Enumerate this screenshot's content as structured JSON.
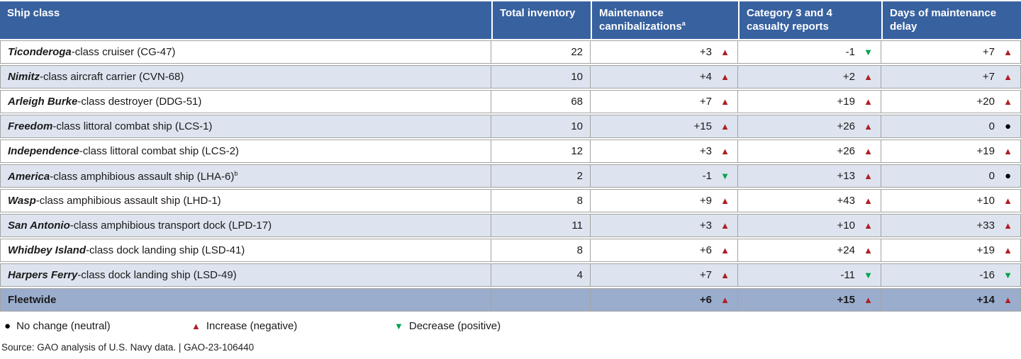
{
  "table": {
    "columns": [
      {
        "label": "Ship class",
        "sup": ""
      },
      {
        "label": "Total inventory",
        "sup": ""
      },
      {
        "label": "Maintenance cannibalizations",
        "sup": "a"
      },
      {
        "label": "Category 3 and 4 casualty reports",
        "sup": ""
      },
      {
        "label": "Days of maintenance delay",
        "sup": ""
      }
    ],
    "rows": [
      {
        "class_name": "Ticonderoga",
        "rest": "-class cruiser (CG-47)",
        "sup": "",
        "inventory": "22",
        "cannibalizations": {
          "value": "+3",
          "dir": "up"
        },
        "casualty_reports": {
          "value": "-1",
          "dir": "down"
        },
        "maintenance_delay": {
          "value": "+7",
          "dir": "up"
        }
      },
      {
        "class_name": "Nimitz",
        "rest": "-class aircraft carrier (CVN-68)",
        "sup": "",
        "inventory": "10",
        "cannibalizations": {
          "value": "+4",
          "dir": "up"
        },
        "casualty_reports": {
          "value": "+2",
          "dir": "up"
        },
        "maintenance_delay": {
          "value": "+7",
          "dir": "up"
        }
      },
      {
        "class_name": "Arleigh Burke",
        "rest": "-class destroyer (DDG-51)",
        "sup": "",
        "inventory": "68",
        "cannibalizations": {
          "value": "+7",
          "dir": "up"
        },
        "casualty_reports": {
          "value": "+19",
          "dir": "up"
        },
        "maintenance_delay": {
          "value": "+20",
          "dir": "up"
        }
      },
      {
        "class_name": "Freedom",
        "rest": "-class littoral combat ship (LCS-1)",
        "sup": "",
        "inventory": "10",
        "cannibalizations": {
          "value": "+15",
          "dir": "up"
        },
        "casualty_reports": {
          "value": "+26",
          "dir": "up"
        },
        "maintenance_delay": {
          "value": "0",
          "dir": "neutral"
        }
      },
      {
        "class_name": "Independence",
        "rest": "-class littoral combat ship (LCS-2)",
        "sup": "",
        "inventory": "12",
        "cannibalizations": {
          "value": "+3",
          "dir": "up"
        },
        "casualty_reports": {
          "value": "+26",
          "dir": "up"
        },
        "maintenance_delay": {
          "value": "+19",
          "dir": "up"
        }
      },
      {
        "class_name": "America",
        "rest": "-class amphibious assault ship (LHA-6)",
        "sup": "b",
        "inventory": "2",
        "cannibalizations": {
          "value": "-1",
          "dir": "down"
        },
        "casualty_reports": {
          "value": "+13",
          "dir": "up"
        },
        "maintenance_delay": {
          "value": "0",
          "dir": "neutral"
        }
      },
      {
        "class_name": "Wasp",
        "rest": "-class amphibious assault ship (LHD-1)",
        "sup": "",
        "inventory": "8",
        "cannibalizations": {
          "value": "+9",
          "dir": "up"
        },
        "casualty_reports": {
          "value": "+43",
          "dir": "up"
        },
        "maintenance_delay": {
          "value": "+10",
          "dir": "up"
        }
      },
      {
        "class_name": "San Antonio",
        "rest": "-class amphibious transport dock (LPD-17)",
        "sup": "",
        "inventory": "11",
        "cannibalizations": {
          "value": "+3",
          "dir": "up"
        },
        "casualty_reports": {
          "value": "+10",
          "dir": "up"
        },
        "maintenance_delay": {
          "value": "+33",
          "dir": "up"
        }
      },
      {
        "class_name": "Whidbey Island",
        "rest": "-class dock landing ship (LSD-41)",
        "sup": "",
        "inventory": "8",
        "cannibalizations": {
          "value": "+6",
          "dir": "up"
        },
        "casualty_reports": {
          "value": "+24",
          "dir": "up"
        },
        "maintenance_delay": {
          "value": "+19",
          "dir": "up"
        }
      },
      {
        "class_name": "Harpers Ferry",
        "rest": "-class dock landing ship (LSD-49)",
        "sup": "",
        "inventory": "4",
        "cannibalizations": {
          "value": "+7",
          "dir": "up"
        },
        "casualty_reports": {
          "value": "-11",
          "dir": "down"
        },
        "maintenance_delay": {
          "value": "-16",
          "dir": "down"
        }
      }
    ],
    "footer_row": {
      "label": "Fleetwide",
      "inventory": "",
      "cannibalizations": {
        "value": "+6",
        "dir": "up"
      },
      "casualty_reports": {
        "value": "+15",
        "dir": "up"
      },
      "maintenance_delay": {
        "value": "+14",
        "dir": "up"
      }
    }
  },
  "symbols": {
    "up": "▲",
    "down": "▼",
    "neutral": "●"
  },
  "legend": {
    "items": [
      {
        "icon": "neutral-circle-icon",
        "dir": "neutral",
        "glyph": "●",
        "label": "No change (neutral)"
      },
      {
        "icon": "increase-triangle-icon",
        "dir": "up",
        "glyph": "▲",
        "label": "Increase (negative)"
      },
      {
        "icon": "decrease-triangle-icon",
        "dir": "down",
        "glyph": "▼",
        "label": "Decrease (positive)"
      }
    ]
  },
  "source": "Source: GAO analysis of U.S. Navy data.  |  GAO-23-106440",
  "colors": {
    "header_bg": "#38619f",
    "stripe_bg": "#dde4ef",
    "fleetwide_bg": "#9badcd",
    "increase_red": "#b01e24",
    "decrease_green": "#00a14d",
    "neutral_black": "#000000",
    "border_gray": "#a3a3a3"
  },
  "chart_data": {
    "type": "table",
    "title": "",
    "columns": [
      "Ship class",
      "Total inventory",
      "Maintenance cannibalizations",
      "Category 3 and 4 casualty reports",
      "Days of maintenance delay"
    ],
    "rows": [
      [
        "Ticonderoga-class cruiser (CG-47)",
        22,
        "+3 increase",
        "-1 decrease",
        "+7 increase"
      ],
      [
        "Nimitz-class aircraft carrier (CVN-68)",
        10,
        "+4 increase",
        "+2 increase",
        "+7 increase"
      ],
      [
        "Arleigh Burke-class destroyer (DDG-51)",
        68,
        "+7 increase",
        "+19 increase",
        "+20 increase"
      ],
      [
        "Freedom-class littoral combat ship (LCS-1)",
        10,
        "+15 increase",
        "+26 increase",
        "0 no change"
      ],
      [
        "Independence-class littoral combat ship (LCS-2)",
        12,
        "+3 increase",
        "+26 increase",
        "+19 increase"
      ],
      [
        "America-class amphibious assault ship (LHA-6)",
        2,
        "-1 decrease",
        "+13 increase",
        "0 no change"
      ],
      [
        "Wasp-class amphibious assault ship (LHD-1)",
        8,
        "+9 increase",
        "+43 increase",
        "+10 increase"
      ],
      [
        "San Antonio-class amphibious transport dock (LPD-17)",
        11,
        "+3 increase",
        "+10 increase",
        "+33 increase"
      ],
      [
        "Whidbey Island-class dock landing ship (LSD-41)",
        8,
        "+6 increase",
        "+24 increase",
        "+19 increase"
      ],
      [
        "Harpers Ferry-class dock landing ship (LSD-49)",
        4,
        "+7 increase",
        "-11 decrease",
        "-16 decrease"
      ],
      [
        "Fleetwide",
        null,
        "+6 increase",
        "+15 increase",
        "+14 increase"
      ]
    ],
    "legend": [
      "No change (neutral)",
      "Increase (negative)",
      "Decrease (positive)"
    ],
    "source": "Source: GAO analysis of U.S. Navy data.  |  GAO-23-106440"
  }
}
